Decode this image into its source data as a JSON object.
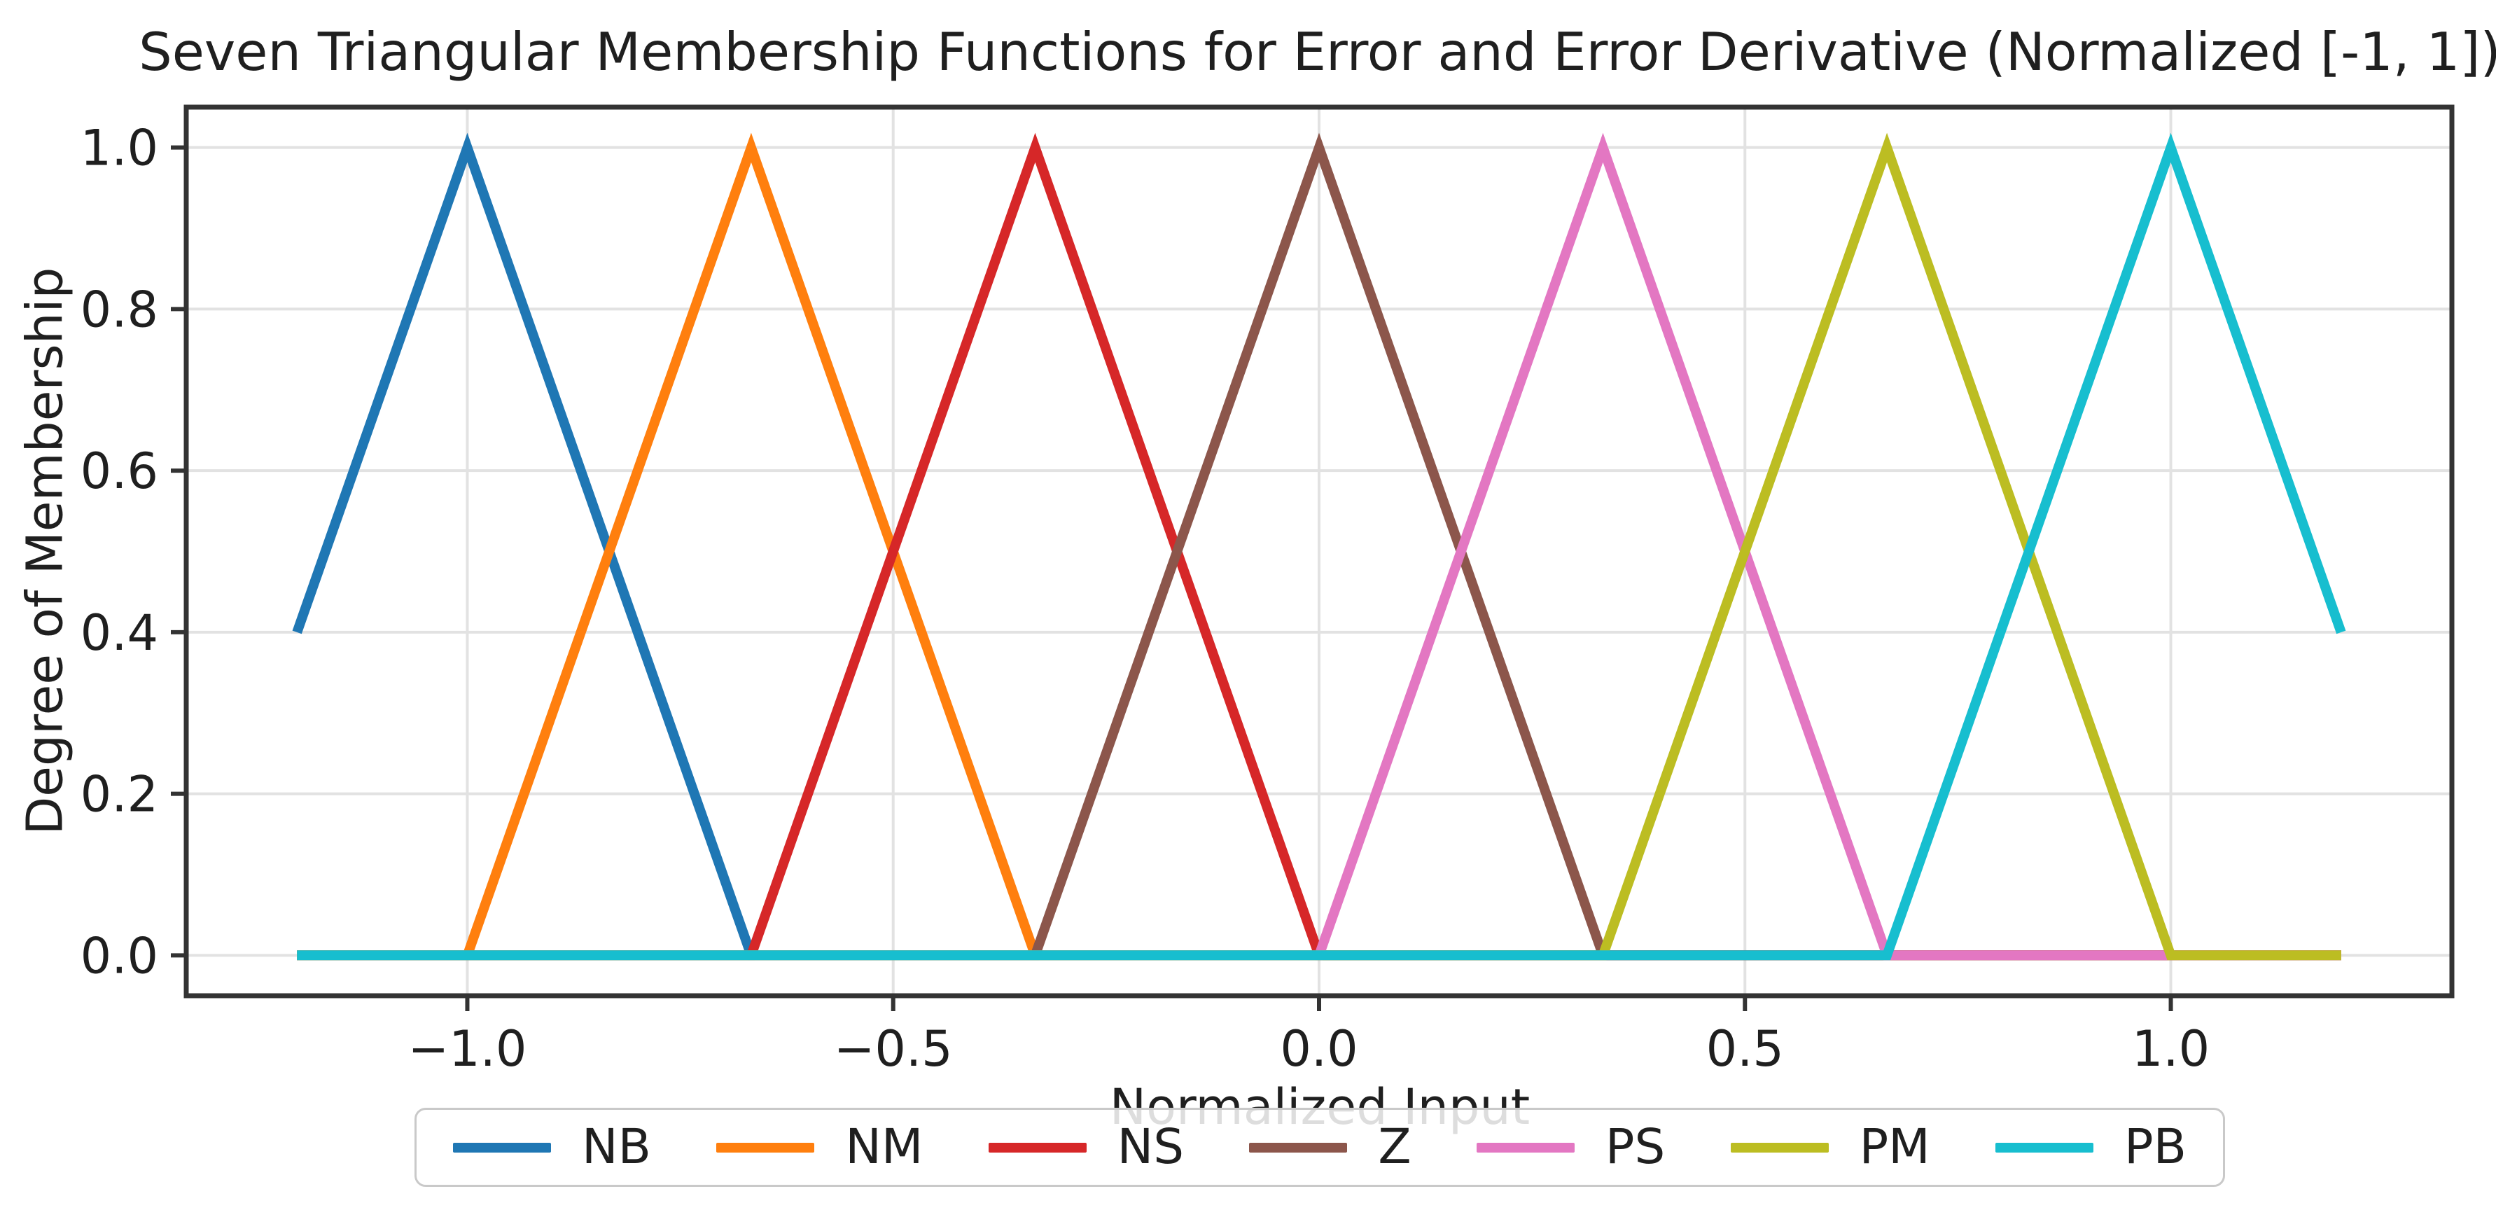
{
  "chart_data": {
    "type": "line",
    "title": "Seven Triangular Membership Functions for Error and Error Derivative (Normalized [-1, 1])",
    "xlabel": "Normalized Input",
    "ylabel": "Degree of Membership",
    "xlim": [
      -1.33,
      1.33
    ],
    "ylim": [
      -0.05,
      1.05
    ],
    "x_data_range": [
      -1.2,
      1.2
    ],
    "x_ticks": [
      -1.0,
      -0.5,
      0.0,
      0.5,
      1.0
    ],
    "x_tick_labels": [
      "−1.0",
      "−0.5",
      "0.0",
      "0.5",
      "1.0"
    ],
    "y_ticks": [
      0.0,
      0.2,
      0.4,
      0.6,
      0.8,
      1.0
    ],
    "y_tick_labels": [
      "0.0",
      "0.2",
      "0.4",
      "0.6",
      "0.8",
      "1.0"
    ],
    "grid": true,
    "legend_position": "bottom",
    "series": [
      {
        "name": "NB",
        "color": "#1f77b4",
        "triangle": [
          -1.3333,
          -1.0,
          -0.6667
        ]
      },
      {
        "name": "NM",
        "color": "#ff7f0e",
        "triangle": [
          -1.0,
          -0.6667,
          -0.3333
        ]
      },
      {
        "name": "NS",
        "color": "#d62728",
        "triangle": [
          -0.6667,
          -0.3333,
          0.0
        ]
      },
      {
        "name": "Z",
        "color": "#8c564b",
        "triangle": [
          -0.3333,
          0.0,
          0.3333
        ]
      },
      {
        "name": "PS",
        "color": "#e377c2",
        "triangle": [
          0.0,
          0.3333,
          0.6667
        ]
      },
      {
        "name": "PM",
        "color": "#bcbd22",
        "triangle": [
          0.3333,
          0.6667,
          1.0
        ]
      },
      {
        "name": "PB",
        "color": "#17becf",
        "triangle": [
          0.6667,
          1.0,
          1.3333
        ]
      }
    ],
    "style": {
      "grid_color": "#e2e2e2",
      "spine_color": "#333333",
      "tick_color": "#333333",
      "line_width": 14
    }
  }
}
